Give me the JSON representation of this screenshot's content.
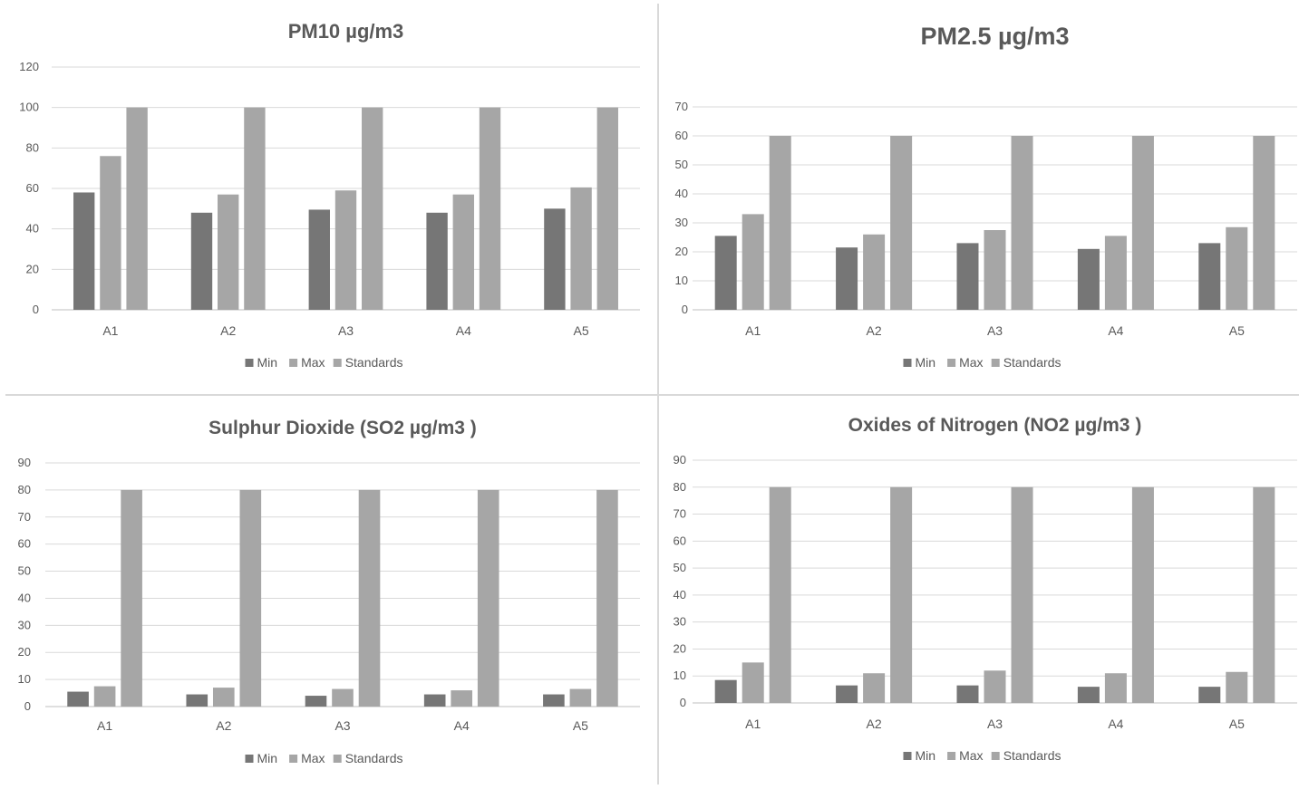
{
  "chart_data": [
    {
      "type": "bar",
      "title": "PM10 µg/m3",
      "categories": [
        "A1",
        "A2",
        "A3",
        "A4",
        "A5"
      ],
      "series": [
        {
          "name": "Min",
          "color": "#767676",
          "values": [
            58,
            48,
            49.5,
            48,
            50
          ]
        },
        {
          "name": "Max",
          "color": "#a6a6a6",
          "values": [
            76,
            57,
            59,
            57,
            60.5
          ]
        },
        {
          "name": "Standards",
          "color": "#a6a6a6",
          "values": [
            100,
            100,
            100,
            100,
            100
          ]
        }
      ],
      "ylim": [
        0,
        120
      ],
      "yticks": [
        0,
        20,
        40,
        60,
        80,
        100,
        120
      ],
      "xlabel": "",
      "ylabel": "",
      "grid": true,
      "legend": "bottom"
    },
    {
      "type": "bar",
      "title": "PM2.5 µg/m3",
      "categories": [
        "A1",
        "A2",
        "A3",
        "A4",
        "A5"
      ],
      "series": [
        {
          "name": "Min",
          "color": "#767676",
          "values": [
            25.5,
            21.5,
            23,
            21,
            23
          ]
        },
        {
          "name": "Max",
          "color": "#a6a6a6",
          "values": [
            33,
            26,
            27.5,
            25.5,
            28.5
          ]
        },
        {
          "name": "Standards",
          "color": "#a6a6a6",
          "values": [
            60,
            60,
            60,
            60,
            60
          ]
        }
      ],
      "ylim": [
        0,
        70
      ],
      "yticks": [
        0,
        10,
        20,
        30,
        40,
        50,
        60,
        70
      ],
      "xlabel": "",
      "ylabel": "",
      "grid": true,
      "legend": "bottom"
    },
    {
      "type": "bar",
      "title": "Sulphur Dioxide (SO2 µg/m3 )",
      "categories": [
        "A1",
        "A2",
        "A3",
        "A4",
        "A5"
      ],
      "series": [
        {
          "name": "Min",
          "color": "#767676",
          "values": [
            5.5,
            4.5,
            4,
            4.5,
            4.5
          ]
        },
        {
          "name": "Max",
          "color": "#a6a6a6",
          "values": [
            7.5,
            7,
            6.5,
            6,
            6.5
          ]
        },
        {
          "name": "Standards",
          "color": "#a6a6a6",
          "values": [
            80,
            80,
            80,
            80,
            80
          ]
        }
      ],
      "ylim": [
        0,
        90
      ],
      "yticks": [
        0,
        10,
        20,
        30,
        40,
        50,
        60,
        70,
        80,
        90
      ],
      "xlabel": "",
      "ylabel": "",
      "grid": true,
      "legend": "bottom"
    },
    {
      "type": "bar",
      "title": "Oxides of Nitrogen (NO2 µg/m3 )",
      "categories": [
        "A1",
        "A2",
        "A3",
        "A4",
        "A5"
      ],
      "series": [
        {
          "name": "Min",
          "color": "#767676",
          "values": [
            8.5,
            6.5,
            6.5,
            6,
            6
          ]
        },
        {
          "name": "Max",
          "color": "#a6a6a6",
          "values": [
            15,
            11,
            12,
            11,
            11.5
          ]
        },
        {
          "name": "Standards",
          "color": "#a6a6a6",
          "values": [
            80,
            80,
            80,
            80,
            80
          ]
        }
      ],
      "ylim": [
        0,
        90
      ],
      "yticks": [
        0,
        10,
        20,
        30,
        40,
        50,
        60,
        70,
        80,
        90
      ],
      "xlabel": "",
      "ylabel": "",
      "grid": true,
      "legend": "bottom"
    }
  ]
}
